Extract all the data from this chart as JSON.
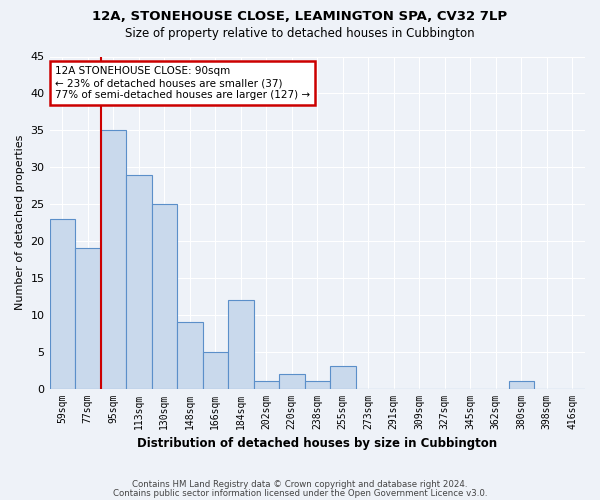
{
  "title1": "12A, STONEHOUSE CLOSE, LEAMINGTON SPA, CV32 7LP",
  "title2": "Size of property relative to detached houses in Cubbington",
  "xlabel": "Distribution of detached houses by size in Cubbington",
  "ylabel": "Number of detached properties",
  "categories": [
    "59sqm",
    "77sqm",
    "95sqm",
    "113sqm",
    "130sqm",
    "148sqm",
    "166sqm",
    "184sqm",
    "202sqm",
    "220sqm",
    "238sqm",
    "255sqm",
    "273sqm",
    "291sqm",
    "309sqm",
    "327sqm",
    "345sqm",
    "362sqm",
    "380sqm",
    "398sqm",
    "416sqm"
  ],
  "values": [
    23,
    19,
    35,
    29,
    25,
    9,
    5,
    12,
    1,
    2,
    1,
    3,
    0,
    0,
    0,
    0,
    0,
    0,
    1,
    0,
    0
  ],
  "bar_color": "#c9d9ec",
  "bar_edge_color": "#5b8fc9",
  "ann_line1": "12A STONEHOUSE CLOSE: 90sqm",
  "ann_line2": "← 23% of detached houses are smaller (37)",
  "ann_line3": "77% of semi-detached houses are larger (127) →",
  "annotation_box_color": "#ffffff",
  "annotation_box_edge_color": "#cc0000",
  "vline_color": "#cc0000",
  "background_color": "#eef2f8",
  "grid_color": "#ffffff",
  "ylim": [
    0,
    45
  ],
  "yticks": [
    0,
    5,
    10,
    15,
    20,
    25,
    30,
    35,
    40,
    45
  ],
  "footer1": "Contains HM Land Registry data © Crown copyright and database right 2024.",
  "footer2": "Contains public sector information licensed under the Open Government Licence v3.0."
}
